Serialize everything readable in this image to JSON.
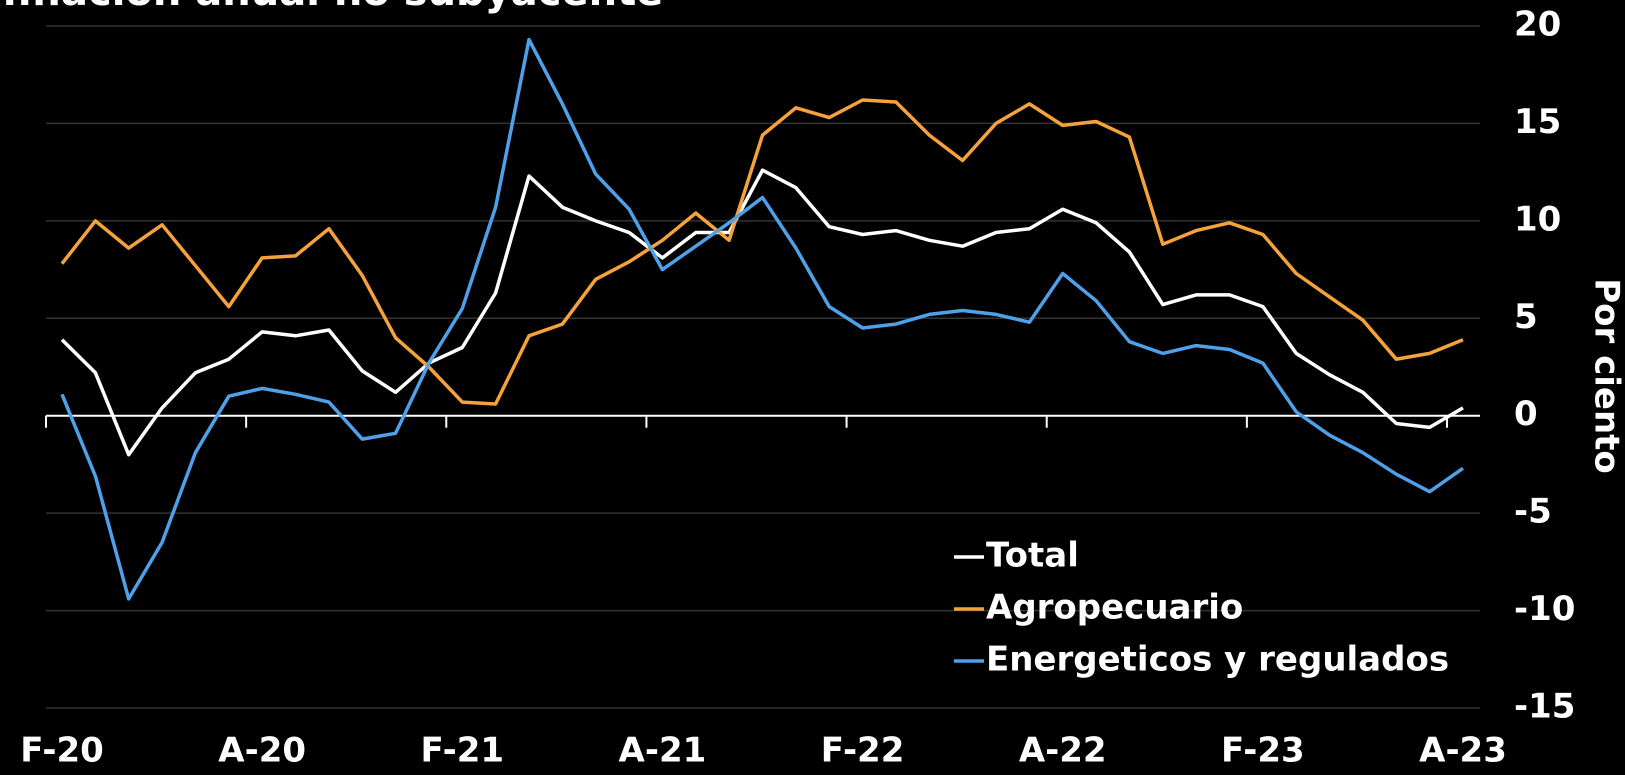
{
  "chart_data": {
    "type": "line",
    "title": "Inflación anual no subyacente",
    "y_axis_label": "Por ciento",
    "categories": [
      "F-20",
      null,
      null,
      null,
      null,
      null,
      "A-20",
      null,
      null,
      null,
      null,
      null,
      "F-21",
      null,
      null,
      null,
      null,
      null,
      "A-21",
      null,
      null,
      null,
      null,
      null,
      "F-22",
      null,
      null,
      null,
      null,
      null,
      "A-22",
      null,
      null,
      null,
      null,
      null,
      "F-23",
      null,
      null,
      null,
      null,
      null,
      "A-23"
    ],
    "series": [
      {
        "name": "Total",
        "color": "#ffffff",
        "values": [
          3.9,
          2.2,
          -2.0,
          0.4,
          2.2,
          2.9,
          4.3,
          4.1,
          4.4,
          2.3,
          1.2,
          2.7,
          3.5,
          6.3,
          12.3,
          10.7,
          10.0,
          9.4,
          8.1,
          9.4,
          9.4,
          12.6,
          11.7,
          9.7,
          9.3,
          9.5,
          9.0,
          8.7,
          9.4,
          9.6,
          10.6,
          9.9,
          8.4,
          5.7,
          6.2,
          6.2,
          5.6,
          3.2,
          2.1,
          1.2,
          -0.4,
          -0.6,
          0.4
        ]
      },
      {
        "name": "Agropecuario",
        "color": "#f5a23a",
        "values": [
          7.8,
          10.0,
          8.6,
          9.8,
          7.7,
          5.6,
          8.1,
          8.2,
          9.6,
          7.2,
          4.0,
          2.5,
          0.7,
          0.6,
          4.1,
          4.7,
          7.0,
          7.9,
          9.0,
          10.4,
          9.0,
          14.4,
          15.8,
          15.3,
          16.2,
          16.1,
          14.4,
          13.1,
          15.0,
          16.0,
          14.9,
          15.1,
          14.3,
          8.8,
          9.5,
          9.9,
          9.3,
          7.3,
          6.1,
          4.9,
          2.9,
          3.2,
          3.9
        ]
      },
      {
        "name": "Energeticos y regulados",
        "color": "#4ea1e8",
        "values": [
          1.1,
          -3.1,
          -9.4,
          -6.5,
          -1.9,
          1.0,
          1.4,
          1.1,
          0.7,
          -1.2,
          -0.9,
          2.7,
          5.5,
          10.7,
          19.3,
          16.0,
          12.4,
          10.6,
          7.5,
          8.7,
          9.9,
          11.2,
          8.6,
          5.6,
          4.5,
          4.7,
          5.2,
          5.4,
          5.2,
          4.8,
          7.3,
          5.9,
          3.8,
          3.2,
          3.6,
          3.4,
          2.7,
          0.2,
          -1.0,
          -1.9,
          -3.0,
          -3.9,
          -2.7
        ]
      }
    ],
    "ylim": [
      -15,
      20
    ],
    "yticks": [
      -15,
      -10,
      -5,
      0,
      5,
      10,
      15,
      20
    ],
    "y_axis_side": "right",
    "grid": true,
    "legend": "bottom-center"
  }
}
